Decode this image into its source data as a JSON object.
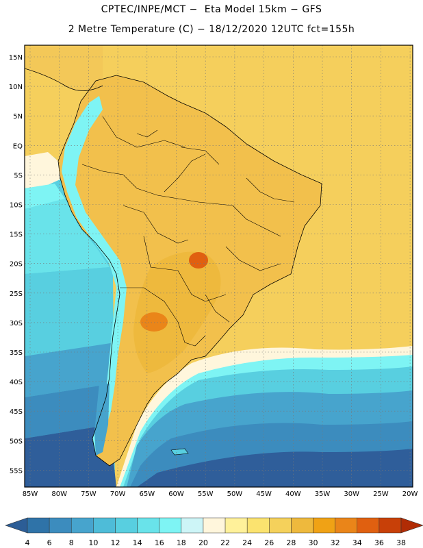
{
  "header": {
    "line1": "CPTEC/INPE/MCT −  Eta Model 15km − GFS",
    "line2": "2 Metre Temperature (C) − 18/12/2020 12UTC fct=155h"
  },
  "map": {
    "lat_ticks": [
      "15N",
      "10N",
      "5N",
      "EQ",
      "5S",
      "10S",
      "15S",
      "20S",
      "25S",
      "30S",
      "35S",
      "40S",
      "45S",
      "50S",
      "55S"
    ],
    "lon_ticks": [
      "85W",
      "80W",
      "75W",
      "70W",
      "65W",
      "60W",
      "55W",
      "50W",
      "45W",
      "40W",
      "35W",
      "30W",
      "25W",
      "20W"
    ]
  },
  "colorbar": {
    "labels": [
      "4",
      "6",
      "8",
      "10",
      "12",
      "14",
      "16",
      "18",
      "20",
      "22",
      "24",
      "26",
      "28",
      "30",
      "32",
      "34",
      "36",
      "38"
    ],
    "colors": [
      "#2c5d96",
      "#2f73a8",
      "#3c8cbe",
      "#47a4cd",
      "#4ebcd8",
      "#58cfe0",
      "#69e3ea",
      "#7ef4f4",
      "#cdf5f7",
      "#fff6dc",
      "#fff19a",
      "#fbe36f",
      "#f5d15b",
      "#eeb93d",
      "#f0a215",
      "#ea8519",
      "#e06010",
      "#c84008",
      "#b02c05"
    ]
  },
  "legend_colors": {
    "ocean_deep": "#2f5e9a",
    "ocean_mid": "#3d8bbf",
    "ocean_light": "#58cfe0",
    "warm_ocean": "#f5cf5c",
    "land": "#f2c04c"
  }
}
